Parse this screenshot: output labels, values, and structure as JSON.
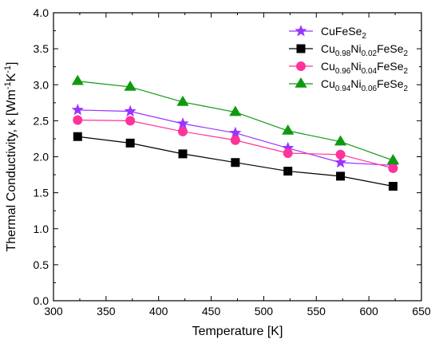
{
  "chart_data": {
    "type": "line",
    "xlabel": "Temperature [K]",
    "ylabel": {
      "prefix": "Thermal Conductivity, κ [Wm",
      "exp1": "-1",
      "mid": "K",
      "exp2": "-1",
      "suffix": "]"
    },
    "xlim": [
      300,
      650
    ],
    "ylim": [
      0.0,
      4.0
    ],
    "xticks": [
      "300",
      "350",
      "400",
      "450",
      "500",
      "550",
      "600",
      "650"
    ],
    "yticks": [
      "0.0",
      "0.5",
      "1.0",
      "1.5",
      "2.0",
      "2.5",
      "3.0",
      "3.5",
      "4.0"
    ],
    "x": [
      323,
      373,
      423,
      473,
      523,
      573,
      623
    ],
    "grid": false,
    "legend_position": "top-right",
    "series": [
      {
        "name": "CuFeSe2",
        "legend_parts": [
          {
            "t": "CuFeSe"
          },
          {
            "t": "2",
            "sub": true
          }
        ],
        "values": [
          2.65,
          2.63,
          2.46,
          2.33,
          2.12,
          1.92,
          1.88
        ],
        "color": "#9933ff",
        "marker": "star"
      },
      {
        "name": "Cu0.98Ni0.02FeSe2",
        "legend_parts": [
          {
            "t": "Cu"
          },
          {
            "t": "0.98",
            "sub": true
          },
          {
            "t": "Ni"
          },
          {
            "t": "0.02",
            "sub": true
          },
          {
            "t": "FeSe"
          },
          {
            "t": "2",
            "sub": true
          }
        ],
        "values": [
          2.28,
          2.19,
          2.04,
          1.92,
          1.8,
          1.73,
          1.59
        ],
        "color": "#000000",
        "marker": "square"
      },
      {
        "name": "Cu0.96Ni0.04FeSe2",
        "legend_parts": [
          {
            "t": "Cu"
          },
          {
            "t": "0.96",
            "sub": true
          },
          {
            "t": "Ni"
          },
          {
            "t": "0.04",
            "sub": true
          },
          {
            "t": "FeSe"
          },
          {
            "t": "2",
            "sub": true
          }
        ],
        "values": [
          2.51,
          2.5,
          2.35,
          2.23,
          2.05,
          2.03,
          1.84
        ],
        "color": "#ff3399",
        "marker": "circle"
      },
      {
        "name": "Cu0.94Ni0.06FeSe2",
        "legend_parts": [
          {
            "t": "Cu"
          },
          {
            "t": "0.94",
            "sub": true
          },
          {
            "t": "Ni"
          },
          {
            "t": "0.06",
            "sub": true
          },
          {
            "t": "FeSe"
          },
          {
            "t": "2",
            "sub": true
          }
        ],
        "values": [
          3.05,
          2.97,
          2.76,
          2.62,
          2.36,
          2.21,
          1.95
        ],
        "color": "#109910",
        "marker": "triangle"
      }
    ]
  }
}
